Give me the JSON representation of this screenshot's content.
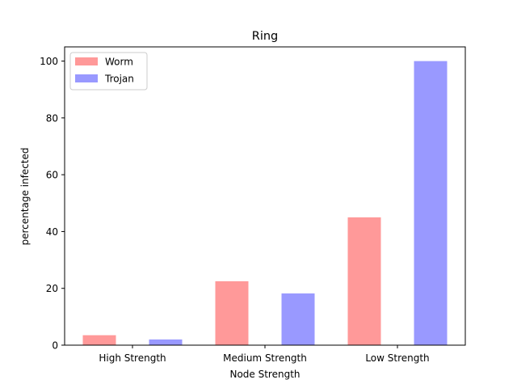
{
  "chart_data": {
    "type": "bar",
    "title": "Ring",
    "xlabel": "Node Strength",
    "ylabel": "percentage infected",
    "categories": [
      "High Strength",
      "Medium Strength",
      "Low Strength"
    ],
    "series": [
      {
        "name": "Worm",
        "values": [
          3.5,
          22.5,
          45
        ],
        "color": "#ff9999"
      },
      {
        "name": "Trojan",
        "values": [
          2,
          18.2,
          100
        ],
        "color": "#9999ff"
      }
    ],
    "ylim": [
      0,
      105
    ],
    "yticks": [
      0,
      20,
      40,
      60,
      80,
      100
    ],
    "grid": false,
    "legend_position": "top-left"
  }
}
